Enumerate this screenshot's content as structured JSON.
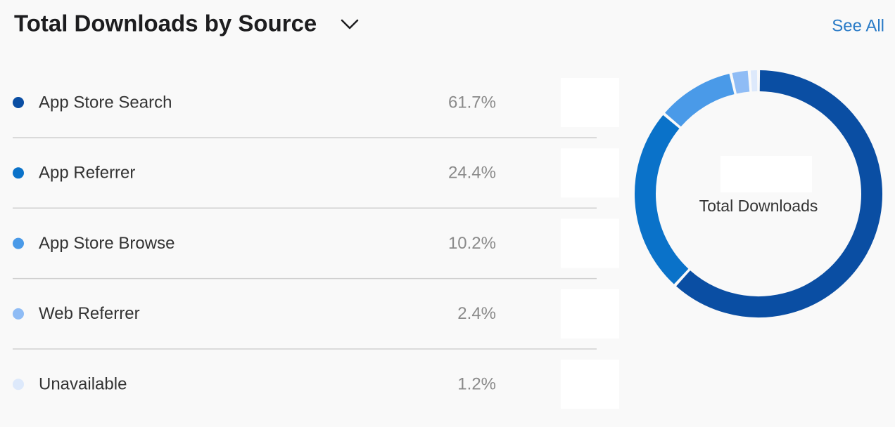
{
  "chart_data": {
    "type": "pie",
    "title": "Total Downloads by Source",
    "link": "See All",
    "center_label": "Total Downloads",
    "categories": [
      "App Store Search",
      "App Referrer",
      "App Store Browse",
      "Web Referrer",
      "Unavailable"
    ],
    "values": [
      61.7,
      24.4,
      10.2,
      2.4,
      1.2
    ],
    "value_labels": [
      "61.7%",
      "24.4%",
      "10.2%",
      "2.4%",
      "1.2%"
    ],
    "colors": [
      "#0a4ea3",
      "#0a72c9",
      "#4a9ae8",
      "#8fbcf5",
      "#dde9fb"
    ]
  }
}
